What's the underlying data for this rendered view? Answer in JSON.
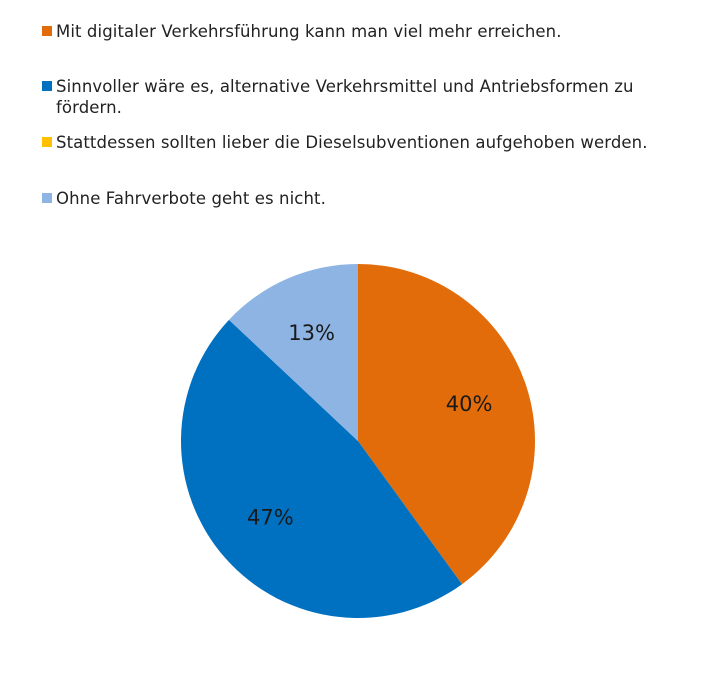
{
  "chart_data": {
    "type": "pie",
    "legend_position": "top",
    "start_angle_deg": 0,
    "direction": "clockwise",
    "categories": [
      "Mit digitaler Verkehrsführung kann man viel mehr erreichen.",
      "Sinnvoller wäre es, alternative Verkehrsmittel und Antriebsformen zu fördern.",
      "Stattdessen sollten lieber die Dieselsubventionen aufgehoben werden.",
      "Ohne Fahrverbote geht es nicht."
    ],
    "values": [
      40,
      47,
      0,
      13
    ],
    "value_labels": [
      "40%",
      "47%",
      "",
      "13%"
    ],
    "colors": [
      "#E36C0A",
      "#0070C0",
      "#FFC000",
      "#8EB4E3"
    ]
  }
}
